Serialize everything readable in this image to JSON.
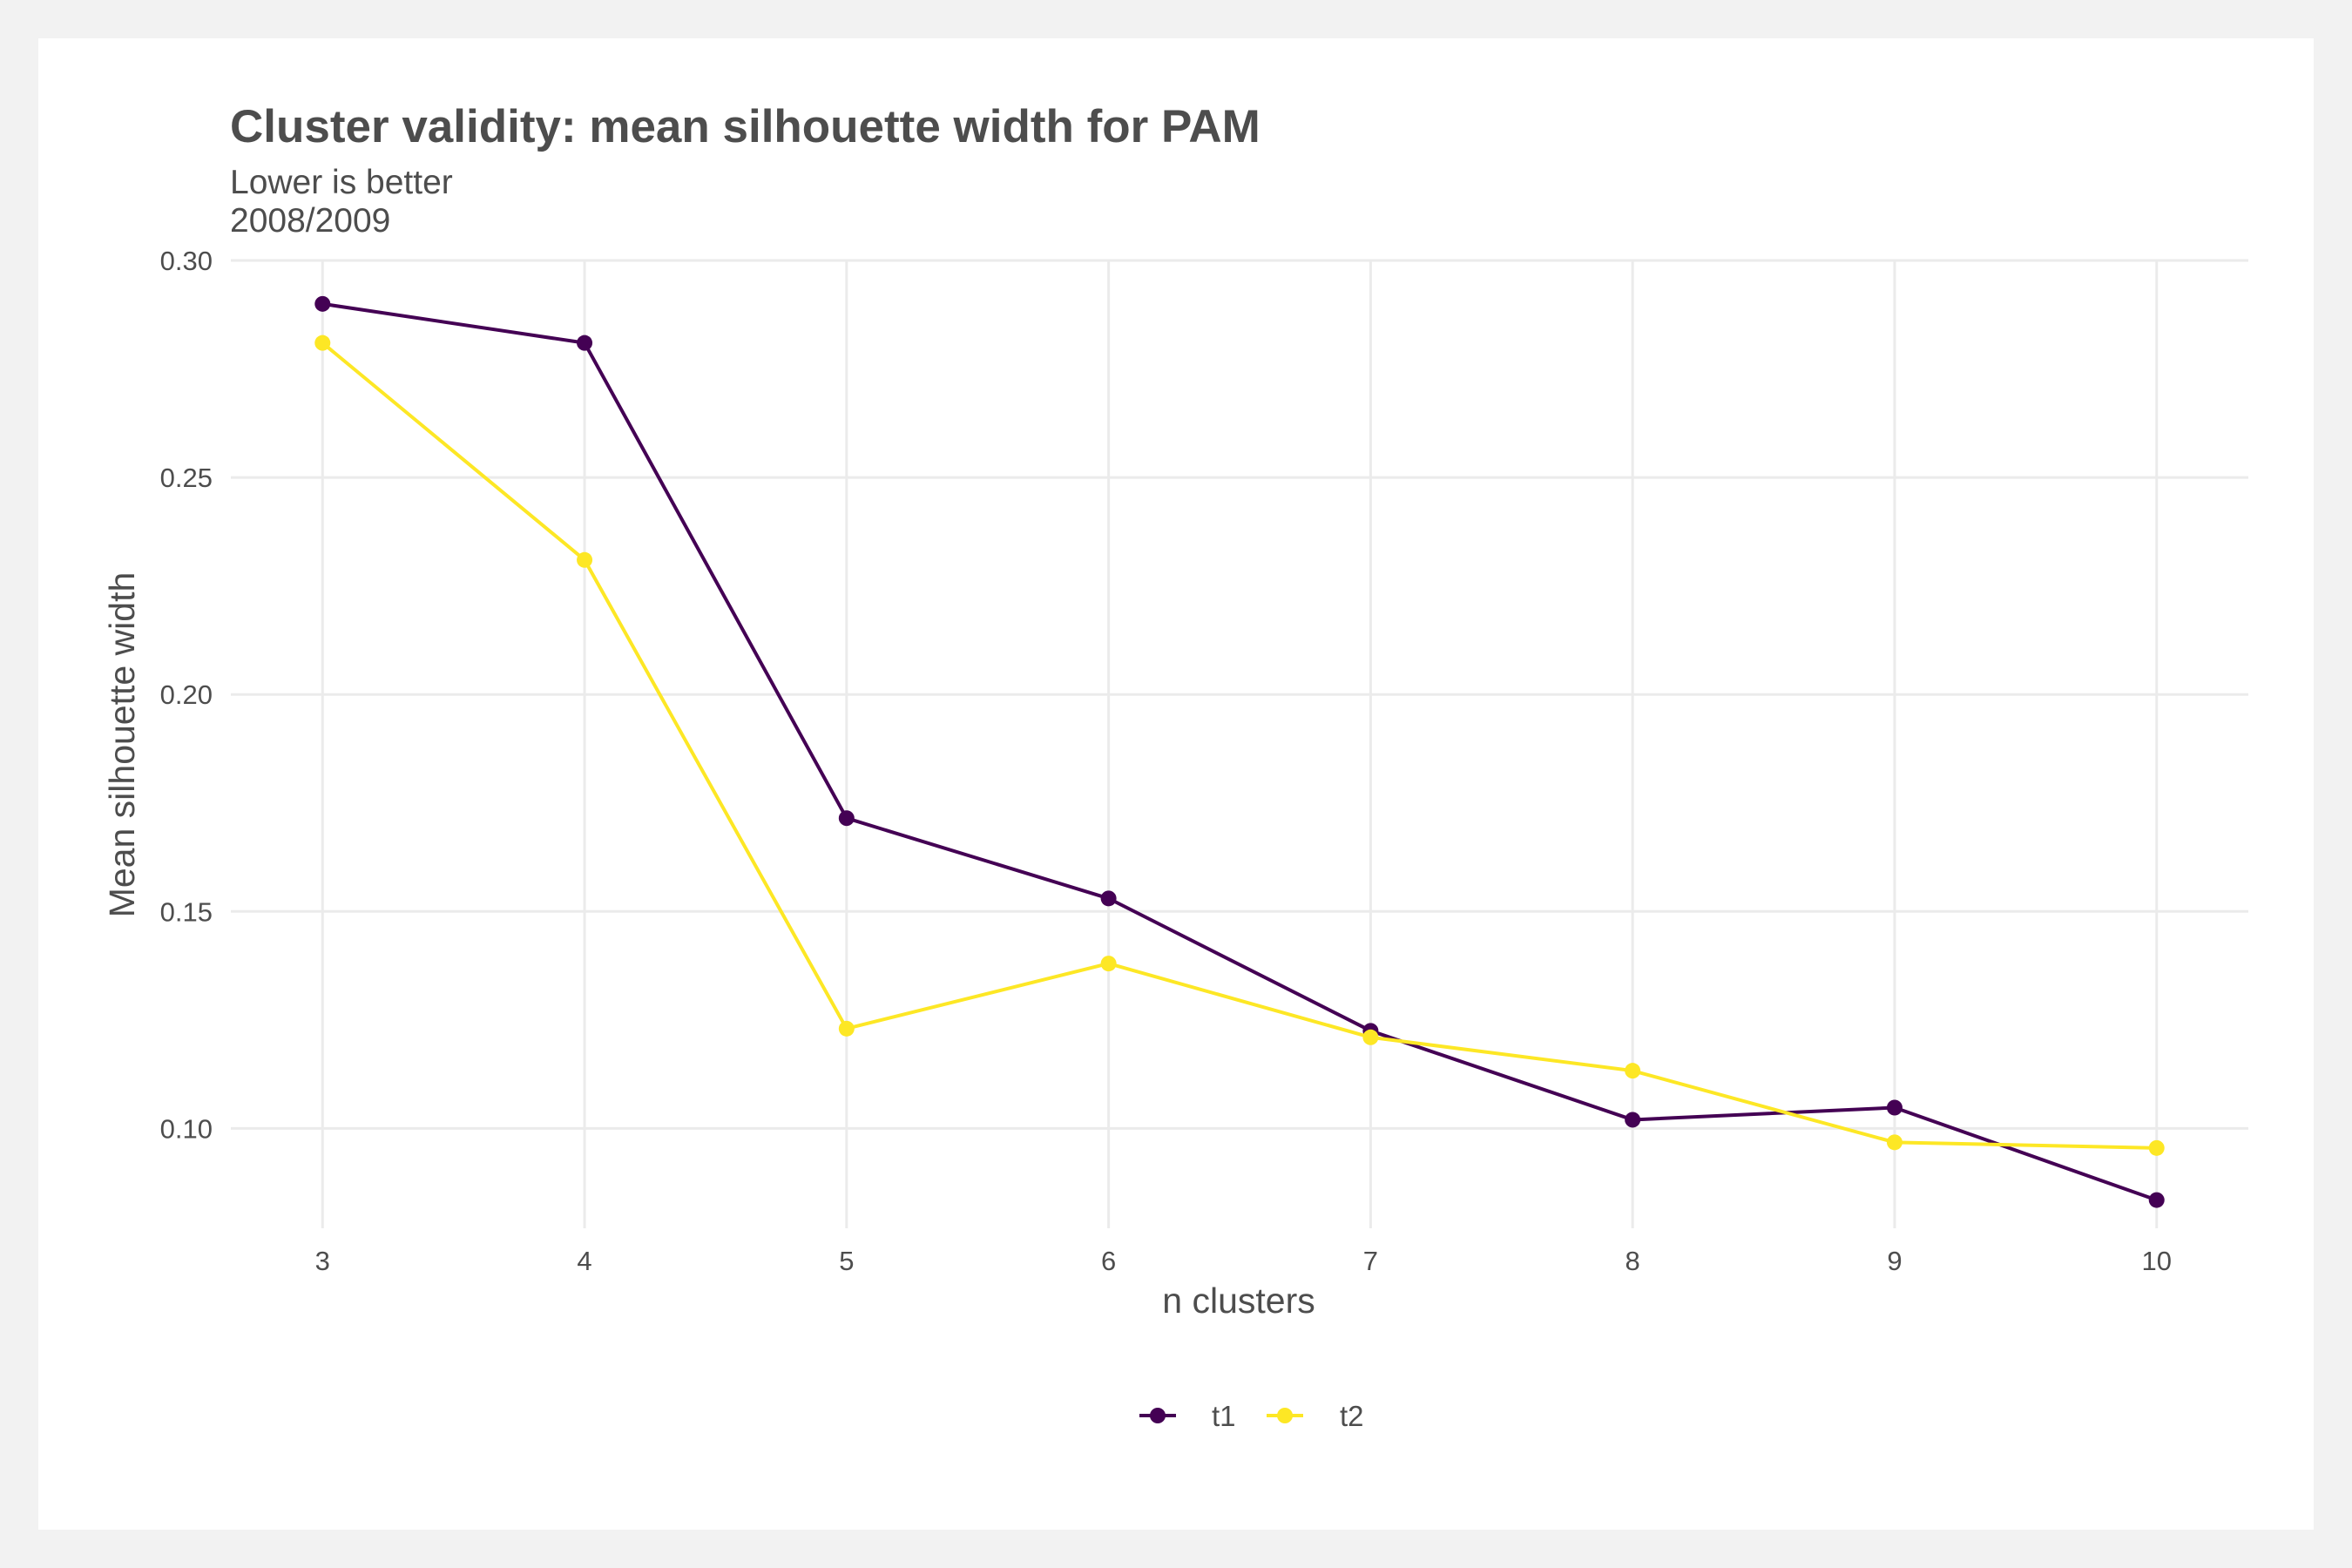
{
  "chart_data": {
    "type": "line",
    "title": "Cluster validity: mean silhouette width for PAM",
    "subtitle_lines": [
      "Lower is better",
      "2008/2009"
    ],
    "xlabel": "n clusters",
    "ylabel": "Mean silhouette width",
    "x": [
      3,
      4,
      5,
      6,
      7,
      8,
      9,
      10
    ],
    "x_tick_labels": [
      "3",
      "4",
      "5",
      "6",
      "7",
      "8",
      "9",
      "10"
    ],
    "y_ticks": [
      0.1,
      0.15,
      0.2,
      0.25,
      0.3
    ],
    "y_tick_labels": [
      "0.10",
      "0.15",
      "0.20",
      "0.25",
      "0.30"
    ],
    "xlim": [
      2.65,
      10.35
    ],
    "ylim": [
      0.077,
      0.3
    ],
    "grid": true,
    "legend_position": "bottom",
    "series": [
      {
        "name": "t1",
        "color": "#440154",
        "values": [
          0.29,
          0.281,
          0.1715,
          0.153,
          0.1225,
          0.102,
          0.1048,
          0.0835
        ]
      },
      {
        "name": "t2",
        "color": "#FDE725",
        "values": [
          0.281,
          0.231,
          0.123,
          0.138,
          0.121,
          0.1133,
          0.0968,
          0.0955
        ]
      }
    ]
  }
}
